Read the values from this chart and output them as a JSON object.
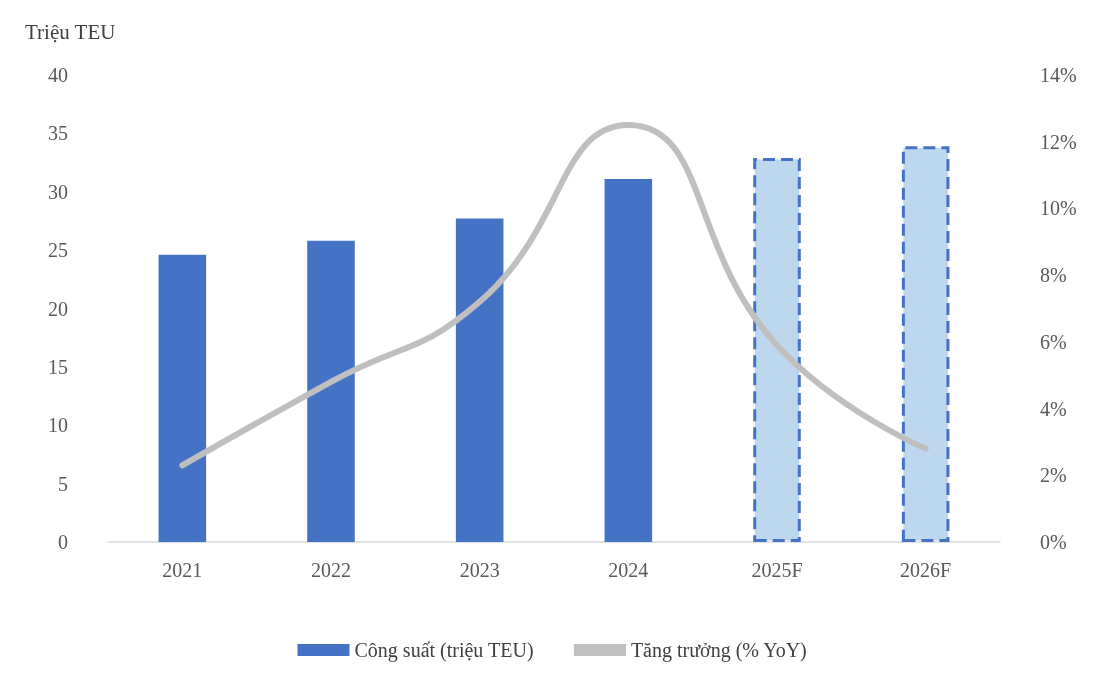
{
  "chart_data": {
    "type": "bar",
    "ylabel": "Triệu TEU",
    "categories": [
      "2021",
      "2022",
      "2023",
      "2024",
      "2025F",
      "2026F"
    ],
    "series": [
      {
        "name": "Công suất (triệu TEU)",
        "color": "#4472c4",
        "colors": [
          "#4472c4",
          "#4472c4",
          "#4472c4",
          "#4472c4",
          "#bdd7ee",
          "#bdd7ee"
        ],
        "values": [
          24.6,
          25.8,
          27.7,
          31.1,
          32.9,
          33.9
        ]
      },
      {
        "name": "Tăng trưởng (% YoY)",
        "type": "line",
        "axis": "y2",
        "color": "#bfbfbf",
        "values": [
          2.3,
          4.8,
          7.2,
          12.5,
          5.9,
          2.8
        ]
      }
    ],
    "ylim": [
      0,
      40
    ],
    "yticks": [
      0,
      5,
      10,
      15,
      20,
      25,
      30,
      35,
      40
    ],
    "y2lim": [
      0,
      14
    ],
    "y2ticks": [
      {
        "value": 0,
        "label": "0%"
      },
      {
        "value": 2,
        "label": "2%"
      },
      {
        "value": 4,
        "label": "4%"
      },
      {
        "value": 6,
        "label": "6%"
      },
      {
        "value": 8,
        "label": "8%"
      },
      {
        "value": 10,
        "label": "10%"
      },
      {
        "value": 12,
        "label": "12%"
      },
      {
        "value": 14,
        "label": "14%"
      }
    ],
    "grid": false,
    "legend": "bottom",
    "marker": "none"
  }
}
